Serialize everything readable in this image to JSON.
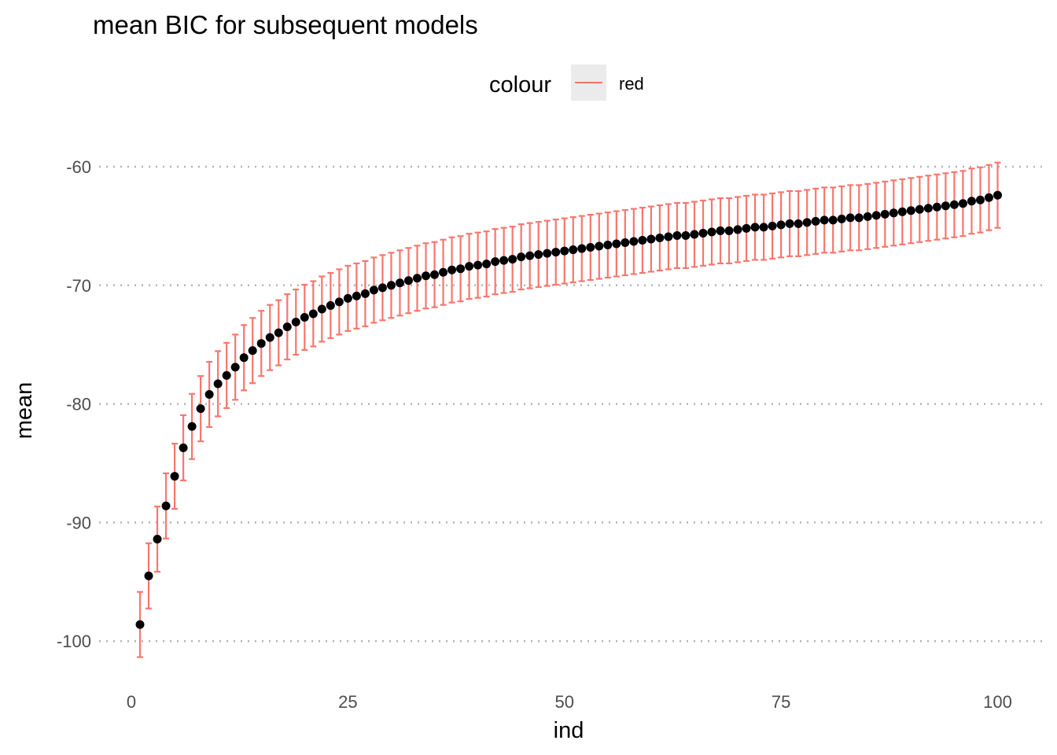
{
  "chart_data": {
    "type": "scatter",
    "title": "mean BIC for subsequent models",
    "xlabel": "ind",
    "ylabel": "mean",
    "xlim": [
      0,
      100
    ],
    "ylim": [
      -103,
      -60
    ],
    "x_ticks": [
      0,
      25,
      50,
      75,
      100
    ],
    "y_ticks": [
      -100,
      -90,
      -80,
      -70,
      -60
    ],
    "grid": "horizontal major, dotted",
    "legend": {
      "title": "colour",
      "entries": [
        "red"
      ],
      "position": "top"
    },
    "series": [
      {
        "name": "red",
        "role": "error bars",
        "color": "#F8766D"
      },
      {
        "role": "points",
        "color": "#000000"
      }
    ],
    "x": [
      1,
      2,
      3,
      4,
      5,
      6,
      7,
      8,
      9,
      10,
      11,
      12,
      13,
      14,
      15,
      16,
      17,
      18,
      19,
      20,
      21,
      22,
      23,
      24,
      25,
      26,
      27,
      28,
      29,
      30,
      31,
      32,
      33,
      34,
      35,
      36,
      37,
      38,
      39,
      40,
      41,
      42,
      43,
      44,
      45,
      46,
      47,
      48,
      49,
      50,
      51,
      52,
      53,
      54,
      55,
      56,
      57,
      58,
      59,
      60,
      61,
      62,
      63,
      64,
      65,
      66,
      67,
      68,
      69,
      70,
      71,
      72,
      73,
      74,
      75,
      76,
      77,
      78,
      79,
      80,
      81,
      82,
      83,
      84,
      85,
      86,
      87,
      88,
      89,
      90,
      91,
      92,
      93,
      94,
      95,
      96,
      97,
      98,
      99,
      100
    ],
    "values": [
      -98.6,
      -94.5,
      -91.4,
      -88.6,
      -86.1,
      -83.7,
      -81.9,
      -80.4,
      -79.2,
      -78.3,
      -77.6,
      -76.9,
      -76.1,
      -75.5,
      -74.9,
      -74.4,
      -74.0,
      -73.5,
      -73.1,
      -72.7,
      -72.4,
      -72.0,
      -71.7,
      -71.4,
      -71.1,
      -70.9,
      -70.7,
      -70.4,
      -70.2,
      -70.0,
      -69.8,
      -69.6,
      -69.4,
      -69.2,
      -69.1,
      -68.9,
      -68.7,
      -68.6,
      -68.4,
      -68.3,
      -68.2,
      -68.0,
      -67.9,
      -67.8,
      -67.6,
      -67.5,
      -67.4,
      -67.3,
      -67.2,
      -67.1,
      -67.0,
      -66.9,
      -66.8,
      -66.7,
      -66.6,
      -66.5,
      -66.4,
      -66.3,
      -66.2,
      -66.1,
      -66.0,
      -65.9,
      -65.8,
      -65.8,
      -65.7,
      -65.6,
      -65.5,
      -65.4,
      -65.4,
      -65.3,
      -65.2,
      -65.1,
      -65.1,
      -65.0,
      -64.9,
      -64.8,
      -64.8,
      -64.7,
      -64.6,
      -64.5,
      -64.5,
      -64.4,
      -64.3,
      -64.3,
      -64.2,
      -64.1,
      -64.0,
      -63.9,
      -63.8,
      -63.7,
      -63.6,
      -63.5,
      -63.4,
      -63.3,
      -63.2,
      -63.1,
      -62.9,
      -62.8,
      -62.6,
      -62.4
    ],
    "error_half_width": 2.75
  }
}
